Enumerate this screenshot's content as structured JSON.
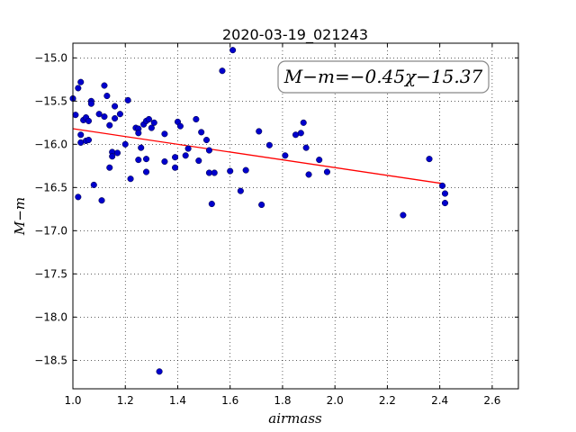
{
  "chart_data": {
    "type": "scatter",
    "title": "2020-03-19_021243",
    "xlabel": "airmass",
    "ylabel": "M−m",
    "xlim": [
      1.0,
      2.7
    ],
    "ylim": [
      -18.83,
      -14.83
    ],
    "y_inverted": true,
    "x_ticks": [
      1.0,
      1.2,
      1.4,
      1.6,
      1.8,
      2.0,
      2.2,
      2.4,
      2.6
    ],
    "x_tick_labels": [
      "1.0",
      "1.2",
      "1.4",
      "1.6",
      "1.8",
      "2.0",
      "2.2",
      "2.4",
      "2.6"
    ],
    "y_ticks": [
      -15.0,
      -15.5,
      -16.0,
      -16.5,
      -17.0,
      -17.5,
      -18.0,
      -18.5
    ],
    "y_tick_labels": [
      "−15.0",
      "−15.5",
      "−16.0",
      "−16.5",
      "−17.0",
      "−17.5",
      "−18.0",
      "−18.5"
    ],
    "grid": true,
    "annotation": "M−m=−0.45χ−15.37",
    "colors": {
      "points": "#0000cc",
      "fit_line": "#ff0000"
    },
    "fit_line": {
      "slope": -0.45,
      "intercept": -15.37,
      "x_range": [
        1.0,
        2.41
      ]
    },
    "points": [
      [
        1.0,
        -15.47
      ],
      [
        1.01,
        -15.66
      ],
      [
        1.02,
        -15.35
      ],
      [
        1.02,
        -16.61
      ],
      [
        1.03,
        -15.28
      ],
      [
        1.03,
        -15.89
      ],
      [
        1.03,
        -15.98
      ],
      [
        1.04,
        -15.72
      ],
      [
        1.05,
        -15.69
      ],
      [
        1.05,
        -15.96
      ],
      [
        1.06,
        -15.73
      ],
      [
        1.06,
        -15.95
      ],
      [
        1.07,
        -15.5
      ],
      [
        1.07,
        -15.53
      ],
      [
        1.08,
        -16.47
      ],
      [
        1.1,
        -15.65
      ],
      [
        1.11,
        -16.65
      ],
      [
        1.12,
        -15.32
      ],
      [
        1.12,
        -15.68
      ],
      [
        1.13,
        -15.44
      ],
      [
        1.14,
        -15.78
      ],
      [
        1.14,
        -16.27
      ],
      [
        1.15,
        -16.09
      ],
      [
        1.15,
        -16.14
      ],
      [
        1.16,
        -15.56
      ],
      [
        1.16,
        -15.7
      ],
      [
        1.17,
        -16.1
      ],
      [
        1.18,
        -15.65
      ],
      [
        1.2,
        -16.0
      ],
      [
        1.21,
        -15.49
      ],
      [
        1.22,
        -16.4
      ],
      [
        1.24,
        -15.81
      ],
      [
        1.25,
        -15.82
      ],
      [
        1.25,
        -15.87
      ],
      [
        1.25,
        -16.18
      ],
      [
        1.26,
        -16.04
      ],
      [
        1.27,
        -15.77
      ],
      [
        1.28,
        -16.17
      ],
      [
        1.28,
        -16.32
      ],
      [
        1.28,
        -15.73
      ],
      [
        1.29,
        -15.71
      ],
      [
        1.3,
        -15.81
      ],
      [
        1.31,
        -15.75
      ],
      [
        1.33,
        -18.63
      ],
      [
        1.35,
        -15.88
      ],
      [
        1.35,
        -16.2
      ],
      [
        1.39,
        -16.15
      ],
      [
        1.39,
        -16.27
      ],
      [
        1.4,
        -15.74
      ],
      [
        1.41,
        -15.79
      ],
      [
        1.43,
        -16.13
      ],
      [
        1.44,
        -16.05
      ],
      [
        1.47,
        -15.71
      ],
      [
        1.48,
        -16.19
      ],
      [
        1.49,
        -15.86
      ],
      [
        1.51,
        -15.95
      ],
      [
        1.52,
        -16.33
      ],
      [
        1.52,
        -16.07
      ],
      [
        1.53,
        -16.69
      ],
      [
        1.54,
        -16.33
      ],
      [
        1.57,
        -15.15
      ],
      [
        1.6,
        -16.31
      ],
      [
        1.61,
        -14.91
      ],
      [
        1.64,
        -16.54
      ],
      [
        1.66,
        -16.3
      ],
      [
        1.71,
        -15.85
      ],
      [
        1.72,
        -16.7
      ],
      [
        1.75,
        -16.01
      ],
      [
        1.81,
        -16.13
      ],
      [
        1.85,
        -15.89
      ],
      [
        1.87,
        -15.87
      ],
      [
        1.88,
        -15.75
      ],
      [
        1.89,
        -16.04
      ],
      [
        1.9,
        -16.35
      ],
      [
        1.94,
        -16.18
      ],
      [
        1.97,
        -16.32
      ],
      [
        2.26,
        -16.82
      ],
      [
        2.36,
        -16.17
      ],
      [
        2.41,
        -16.48
      ],
      [
        2.42,
        -16.57
      ],
      [
        2.42,
        -16.68
      ]
    ]
  }
}
